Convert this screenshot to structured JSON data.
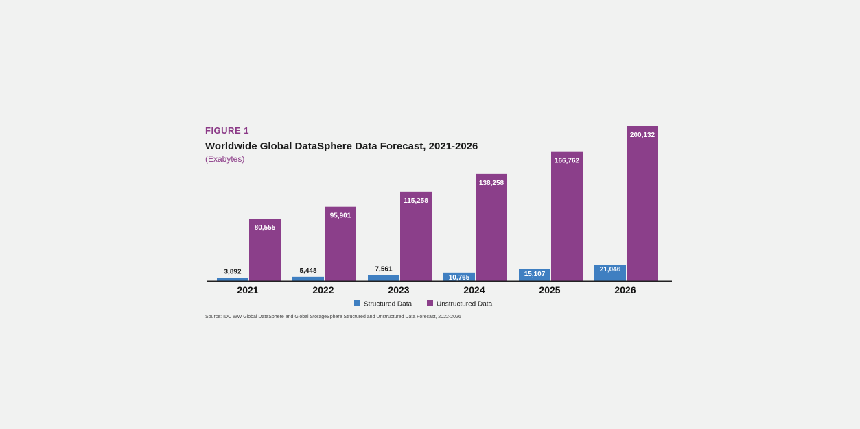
{
  "header": {
    "figure_label": "FIGURE 1",
    "title": "Worldwide Global DataSphere Data Forecast, 2021-2026",
    "subtitle": "(Exabytes)"
  },
  "source": "Source: IDC WW Global DataSphere and Global StorageSphere Structured and Unstructured Data Forecast, 2022-2026",
  "colors": {
    "structured": "#3f7fc1",
    "unstructured": "#8b3f8a",
    "axis": "#222222"
  },
  "chart_data": {
    "type": "bar",
    "title": "Worldwide Global DataSphere Data Forecast, 2021-2026",
    "subtitle": "(Exabytes)",
    "xlabel": "",
    "ylabel": "",
    "categories": [
      "2021",
      "2022",
      "2023",
      "2024",
      "2025",
      "2026"
    ],
    "series": [
      {
        "name": "Structured Data",
        "values": [
          3892,
          5448,
          7561,
          10765,
          15107,
          21046
        ],
        "labels": [
          "3,892",
          "5,448",
          "7,561",
          "10,765",
          "15,107",
          "21,046"
        ]
      },
      {
        "name": "Unstructured Data",
        "values": [
          80555,
          95901,
          115258,
          138258,
          166762,
          200132
        ],
        "labels": [
          "80,555",
          "95,901",
          "115,258",
          "138,258",
          "166,762",
          "200,132"
        ]
      }
    ],
    "ylim": [
      0,
      200132
    ],
    "grid": false,
    "legend": "bottom-center"
  }
}
